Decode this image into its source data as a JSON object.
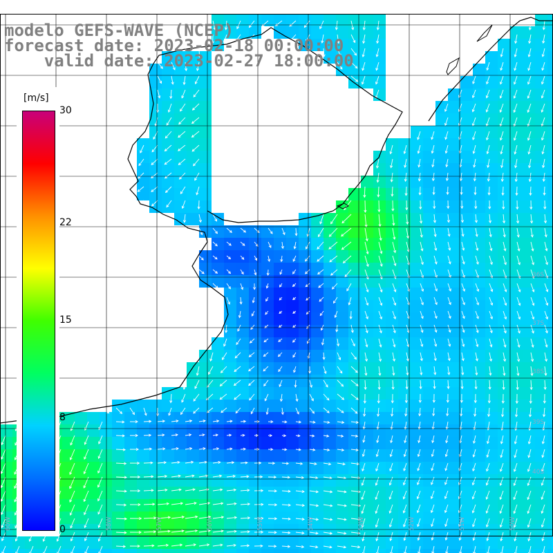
{
  "title": {
    "line1": "modelo GEFS-WAVE (NCEP)",
    "line2": "forecast date: 2023-02-18 00:00:00",
    "line3": "    valid date: 2023-02-27 18:00:00"
  },
  "colorbar": {
    "units": "[m/s]",
    "min": 0,
    "max": 30,
    "ticks": [
      "30",
      "22",
      "15",
      "8",
      "0"
    ],
    "tick_values": [
      30,
      22,
      15,
      8,
      0
    ],
    "colors": [
      "#0000ff",
      "#0070ff",
      "#00d2ff",
      "#00ff60",
      "#40ff00",
      "#ffff00",
      "#ff9000",
      "#ff0000",
      "#c8007a"
    ]
  },
  "map_labels": {
    "lat": [
      "36S",
      "37S",
      "38S",
      "39S",
      "40S"
    ],
    "lon": [
      "60W",
      "59W",
      "58W",
      "57W",
      "56W",
      "55W",
      "54W",
      "53W",
      "52W",
      "51W",
      "50W"
    ]
  },
  "map_colors": {
    "land": "#ffffff",
    "coast": "#000000",
    "grid": "#000000",
    "arrows": "#ffffff"
  }
}
